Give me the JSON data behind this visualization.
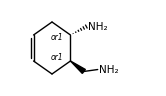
{
  "ring_color": "#000000",
  "bg_color": "#ffffff",
  "text_color": "#000000",
  "figsize": [
    1.66,
    0.96
  ],
  "dpi": 100,
  "or1_label_upper": "or1",
  "or1_label_lower": "or1",
  "nh2_upper": "NH₂",
  "nh2_lower": "NH₂",
  "font_size_nh2": 7.5,
  "font_size_or1": 5.5
}
